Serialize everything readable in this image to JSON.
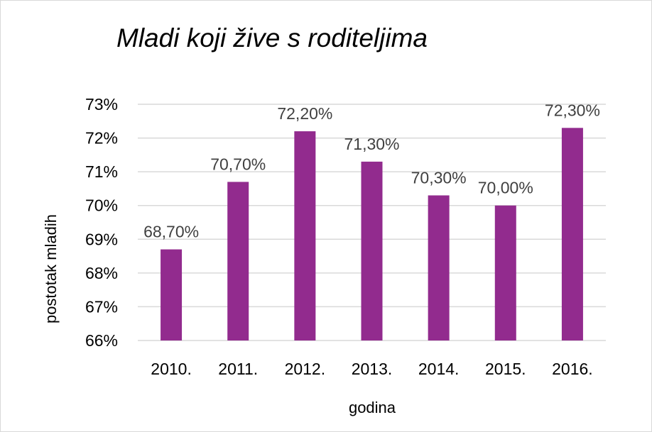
{
  "chart_data": {
    "type": "bar",
    "title": "Mladi koji žive s roditeljima",
    "xlabel": "godina",
    "ylabel": "postotak mladih",
    "categories": [
      "2010.",
      "2011.",
      "2012.",
      "2013.",
      "2014.",
      "2015.",
      "2016."
    ],
    "values": [
      68.7,
      70.7,
      72.2,
      71.3,
      70.3,
      70.0,
      72.3
    ],
    "data_labels": [
      "68,70%",
      "70,70%",
      "72,20%",
      "71,30%",
      "70,30%",
      "70,00%",
      "72,30%"
    ],
    "ylim": [
      66,
      73
    ],
    "yticks": [
      66,
      67,
      68,
      69,
      70,
      71,
      72,
      73
    ],
    "ytick_labels": [
      "66%",
      "67%",
      "68%",
      "69%",
      "70%",
      "71%",
      "72%",
      "73%"
    ],
    "grid": true,
    "legend": false,
    "bar_color": "#922b8e",
    "grid_color": "#d9d9d9"
  }
}
